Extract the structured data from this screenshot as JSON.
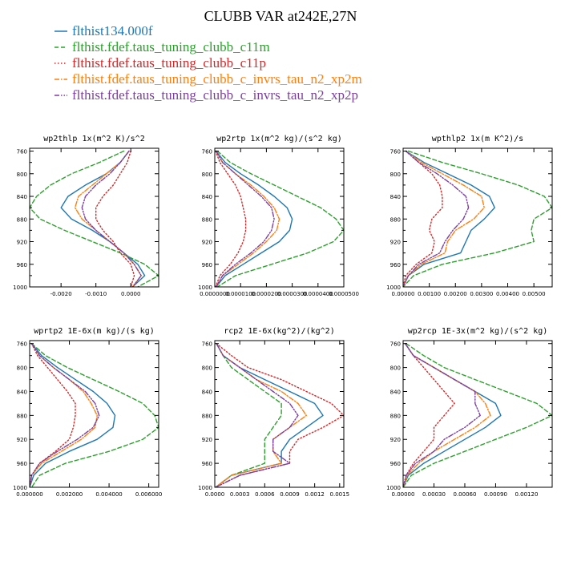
{
  "figure": {
    "title": "CLUBB VAR at242E,27N",
    "legend": [
      {
        "label": "flthist134.000f",
        "color": "#1f77b4",
        "dash": "solid"
      },
      {
        "label": "flthist.fdef.taus_tuning_clubb_c11m",
        "color": "#2ca02c",
        "dash": "dashed"
      },
      {
        "label": "flthist.fdef.taus_tuning_clubb_c11p",
        "color": "#d62728",
        "dash": "dotted"
      },
      {
        "label": "flthist.fdef.taus_tuning_clubb_c_invrs_tau_n2_xp2m",
        "color": "#ff7f0e",
        "dash": "dashdot"
      },
      {
        "label": "flthist.fdef.taus_tuning_clubb_c_invrs_tau_n2_xp2p",
        "color": "#7b3fa0",
        "dash": "dashdotdot"
      }
    ]
  },
  "chart_data": [
    {
      "type": "line",
      "title": "wp2thlp  1x(m^2 K)/s^2",
      "xlim": [
        -0.0029,
        0.0008
      ],
      "ylim": [
        1000,
        755
      ],
      "xticks": [
        -0.002,
        -0.001,
        0.0
      ],
      "xtick_labels": [
        "-0.0020",
        "-0.0010",
        "0.0000"
      ],
      "yticks": [
        760,
        800,
        840,
        880,
        920,
        960,
        1000
      ],
      "ytick_labels": [
        "760",
        "800",
        "840",
        "880",
        "920",
        "960",
        "1000"
      ],
      "y": [
        760,
        780,
        800,
        820,
        840,
        860,
        880,
        900,
        920,
        940,
        960,
        980,
        1000
      ],
      "series": [
        {
          "name": "flthist134.000f",
          "x": [
            -5e-05,
            -0.0003,
            -0.0007,
            -0.0013,
            -0.0018,
            -0.002,
            -0.0017,
            -0.0011,
            -0.0006,
            -0.0002,
            0.0002,
            0.0004,
            5e-05
          ]
        },
        {
          "name": "flthist.fdef.taus_tuning_clubb_c11m",
          "x": [
            -0.0002,
            -0.0009,
            -0.0017,
            -0.0023,
            -0.0027,
            -0.0029,
            -0.0026,
            -0.0019,
            -0.0011,
            -0.0003,
            0.0004,
            0.0008,
            0.0002
          ]
        },
        {
          "name": "flthist.fdef.taus_tuning_clubb_c11p",
          "x": [
            0.0,
            -0.0001,
            -0.0003,
            -0.0005,
            -0.0008,
            -0.001,
            -0.001,
            -0.0008,
            -0.0005,
            -0.0003,
            0.0,
            0.0001,
            0.0
          ]
        },
        {
          "name": "flthist.fdef.taus_tuning_clubb_c_invrs_tau_n2_xp2m",
          "x": [
            -5e-05,
            -0.0003,
            -0.0007,
            -0.0011,
            -0.0015,
            -0.0016,
            -0.0014,
            -0.001,
            -0.0006,
            -0.0002,
            0.0001,
            0.0003,
            5e-05
          ]
        },
        {
          "name": "flthist.fdef.taus_tuning_clubb_c_invrs_tau_n2_xp2p",
          "x": [
            -5e-05,
            -0.0003,
            -0.0006,
            -0.001,
            -0.0013,
            -0.0014,
            -0.0013,
            -0.001,
            -0.0006,
            -0.0002,
            0.0001,
            0.0003,
            5e-05
          ]
        }
      ]
    },
    {
      "type": "line",
      "title": "wp2rtp  1x(m^2 kg)/(s^2 kg)",
      "xlim": [
        0.0,
        5e-05
      ],
      "ylim": [
        1000,
        755
      ],
      "xticks": [
        0.0,
        1e-05,
        2e-05,
        3e-05,
        4e-05,
        5e-05
      ],
      "xtick_labels": [
        "0.0000000",
        "0.0000100",
        "0.0000200",
        "0.0000300",
        "0.0000400",
        "0.0000500"
      ],
      "yticks": [
        760,
        800,
        840,
        880,
        920,
        960,
        1000
      ],
      "ytick_labels": [
        "760",
        "800",
        "840",
        "880",
        "920",
        "960",
        "1000"
      ],
      "y": [
        760,
        780,
        800,
        820,
        840,
        860,
        880,
        900,
        920,
        940,
        960,
        980,
        1000
      ],
      "series": [
        {
          "name": "flthist134.000f",
          "x": [
            5e-07,
            4e-06,
            1e-05,
            1.7e-05,
            2.3e-05,
            2.8e-05,
            3e-05,
            2.9e-05,
            2.5e-05,
            1.8e-05,
            1.1e-05,
            4e-06,
            5e-07
          ]
        },
        {
          "name": "flthist.fdef.taus_tuning_clubb_c11m",
          "x": [
            1e-06,
            6e-06,
            1.4e-05,
            2.3e-05,
            3.2e-05,
            4.1e-05,
            4.7e-05,
            5e-05,
            4.6e-05,
            3.6e-05,
            2.2e-05,
            8e-06,
            1e-06
          ]
        },
        {
          "name": "flthist.fdef.taus_tuning_clubb_c11p",
          "x": [
            3e-07,
            2e-06,
            5e-06,
            8e-06,
            1e-05,
            1.1e-05,
            1.2e-05,
            1.2e-05,
            1.1e-05,
            9e-06,
            6e-06,
            2e-06,
            3e-07
          ]
        },
        {
          "name": "flthist.fdef.taus_tuning_clubb_c_invrs_tau_n2_xp2m",
          "x": [
            5e-07,
            3e-06,
            8e-06,
            1.4e-05,
            1.9e-05,
            2.3e-05,
            2.5e-05,
            2.4e-05,
            2e-05,
            1.5e-05,
            9e-06,
            3e-06,
            5e-07
          ]
        },
        {
          "name": "flthist.fdef.taus_tuning_clubb_c_invrs_tau_n2_xp2p",
          "x": [
            5e-07,
            3e-06,
            8e-06,
            1.3e-05,
            1.8e-05,
            2.2e-05,
            2.3e-05,
            2.2e-05,
            1.9e-05,
            1.4e-05,
            8e-06,
            3e-06,
            5e-07
          ]
        }
      ]
    },
    {
      "type": "line",
      "title": "wpthlp2  1x(m K^2)/s",
      "xlim": [
        0.0,
        0.0057
      ],
      "ylim": [
        1000,
        755
      ],
      "xticks": [
        0.0,
        0.001,
        0.002,
        0.003,
        0.004,
        0.005
      ],
      "xtick_labels": [
        "0.00000",
        "0.00100",
        "0.00200",
        "0.00300",
        "0.00400",
        "0.00500"
      ],
      "yticks": [
        760,
        800,
        840,
        880,
        920,
        960,
        1000
      ],
      "ytick_labels": [
        "760",
        "800",
        "840",
        "880",
        "920",
        "960",
        "1000"
      ],
      "y": [
        760,
        780,
        800,
        820,
        840,
        860,
        880,
        900,
        920,
        940,
        960,
        980,
        1000
      ],
      "series": [
        {
          "name": "flthist134.000f",
          "x": [
            0.0001,
            0.0008,
            0.0017,
            0.0026,
            0.0033,
            0.0035,
            0.0031,
            0.0026,
            0.0024,
            0.0022,
            0.0008,
            0.0002,
            0.0
          ]
        },
        {
          "name": "flthist.fdef.taus_tuning_clubb_c11m",
          "x": [
            0.0002,
            0.0015,
            0.003,
            0.0044,
            0.0054,
            0.0057,
            0.005,
            0.0049,
            0.005,
            0.0035,
            0.0015,
            0.0004,
            0.0
          ]
        },
        {
          "name": "flthist.fdef.taus_tuning_clubb_c11p",
          "x": [
            0.0001,
            0.0006,
            0.0011,
            0.0014,
            0.0015,
            0.0015,
            0.0011,
            0.001,
            0.0012,
            0.0011,
            0.0005,
            0.0001,
            0.0
          ]
        },
        {
          "name": "flthist.fdef.taus_tuning_clubb_c_invrs_tau_n2_xp2m",
          "x": [
            0.0001,
            0.0007,
            0.0015,
            0.0023,
            0.003,
            0.0031,
            0.0027,
            0.002,
            0.0017,
            0.0016,
            0.0007,
            0.0002,
            0.0
          ]
        },
        {
          "name": "flthist.fdef.taus_tuning_clubb_c_invrs_tau_n2_xp2p",
          "x": [
            0.0001,
            0.0006,
            0.0013,
            0.0019,
            0.0024,
            0.0025,
            0.0023,
            0.0019,
            0.0016,
            0.0014,
            0.0006,
            0.0002,
            0.0
          ]
        }
      ]
    },
    {
      "type": "line",
      "title": "wprtp2  1E-6x(m kg)/(s kg)",
      "xlim": [
        0.0,
        0.0065
      ],
      "ylim": [
        1000,
        755
      ],
      "xticks": [
        0.0,
        0.002,
        0.004,
        0.006
      ],
      "xtick_labels": [
        "0.000000",
        "0.002000",
        "0.004000",
        "0.006000"
      ],
      "yticks": [
        760,
        800,
        840,
        880,
        920,
        960,
        1000
      ],
      "ytick_labels": [
        "760",
        "800",
        "840",
        "880",
        "920",
        "960",
        "1000"
      ],
      "y": [
        760,
        780,
        800,
        820,
        840,
        860,
        880,
        900,
        920,
        940,
        960,
        980,
        1000
      ],
      "series": [
        {
          "name": "flthist134.000f",
          "x": [
            0.0001,
            0.0006,
            0.0014,
            0.0023,
            0.0032,
            0.0039,
            0.0043,
            0.0042,
            0.0034,
            0.002,
            0.0008,
            0.0002,
            0.0
          ]
        },
        {
          "name": "flthist.fdef.taus_tuning_clubb_c11m",
          "x": [
            0.0001,
            0.0008,
            0.0019,
            0.0032,
            0.0045,
            0.0057,
            0.0063,
            0.0065,
            0.0057,
            0.004,
            0.0018,
            0.0005,
            0.0001
          ]
        },
        {
          "name": "flthist.fdef.taus_tuning_clubb_c11p",
          "x": [
            0.0001,
            0.0004,
            0.0009,
            0.0014,
            0.0019,
            0.0023,
            0.0023,
            0.0022,
            0.002,
            0.0013,
            0.0005,
            0.0001,
            0.0
          ]
        },
        {
          "name": "flthist.fdef.taus_tuning_clubb_c_invrs_tau_n2_xp2m",
          "x": [
            0.0001,
            0.0005,
            0.0012,
            0.002,
            0.0027,
            0.0031,
            0.0034,
            0.0033,
            0.0026,
            0.0016,
            0.0006,
            0.0001,
            0.0
          ]
        },
        {
          "name": "flthist.fdef.taus_tuning_clubb_c_invrs_tau_n2_xp2p",
          "x": [
            0.0001,
            0.0005,
            0.0012,
            0.002,
            0.0028,
            0.0033,
            0.0035,
            0.0032,
            0.0024,
            0.0014,
            0.0005,
            0.0001,
            0.0
          ]
        }
      ]
    },
    {
      "type": "line",
      "title": "rcp2  1E-6x(kg^2)/(kg^2)",
      "xlim": [
        0.0,
        0.00155
      ],
      "ylim": [
        1000,
        755
      ],
      "xticks": [
        0.0,
        0.0003,
        0.0006,
        0.0009,
        0.0012,
        0.0015
      ],
      "xtick_labels": [
        "0.0000",
        "0.0003",
        "0.0006",
        "0.0009",
        "0.0012",
        "0.0015"
      ],
      "yticks": [
        760,
        800,
        840,
        880,
        920,
        960,
        1000
      ],
      "ytick_labels": [
        "760",
        "800",
        "840",
        "880",
        "920",
        "960",
        "1000"
      ],
      "y": [
        760,
        780,
        800,
        820,
        840,
        860,
        880,
        900,
        920,
        940,
        960,
        980,
        1000
      ],
      "series": [
        {
          "name": "flthist134.000f",
          "x": [
            2e-05,
            0.0001,
            0.0003,
            0.0006,
            0.0009,
            0.0012,
            0.0013,
            0.0011,
            0.0009,
            0.0008,
            0.0008,
            0.0002,
            1e-05
          ]
        },
        {
          "name": "flthist.fdef.taus_tuning_clubb_c11m",
          "x": [
            2e-05,
            0.0001,
            0.0002,
            0.0004,
            0.0006,
            0.0008,
            0.0008,
            0.0007,
            0.0006,
            0.0006,
            0.0006,
            0.0002,
            1e-05
          ]
        },
        {
          "name": "flthist.fdef.taus_tuning_clubb_c11p",
          "x": [
            2e-05,
            0.0002,
            0.0004,
            0.0008,
            0.0011,
            0.0014,
            0.00155,
            0.0013,
            0.001,
            0.0009,
            0.0009,
            0.0003,
            1e-05
          ]
        },
        {
          "name": "flthist.fdef.taus_tuning_clubb_c_invrs_tau_n2_xp2m",
          "x": [
            2e-05,
            0.0001,
            0.0003,
            0.0005,
            0.0008,
            0.001,
            0.0011,
            0.0009,
            0.0007,
            0.0007,
            0.0008,
            0.0002,
            1e-05
          ]
        },
        {
          "name": "flthist.fdef.taus_tuning_clubb_c_invrs_tau_n2_xp2p",
          "x": [
            2e-05,
            0.0001,
            0.0003,
            0.0005,
            0.0007,
            0.0009,
            0.001,
            0.0009,
            0.0007,
            0.0007,
            0.0009,
            0.0003,
            1e-05
          ]
        }
      ]
    },
    {
      "type": "line",
      "title": "wp2rcp  1E-3x(m^2 kg)/(s^2 kg)",
      "xlim": [
        0.0,
        0.00145
      ],
      "ylim": [
        1000,
        755
      ],
      "xticks": [
        0.0,
        0.0003,
        0.0006,
        0.0009,
        0.0012
      ],
      "xtick_labels": [
        "0.00000",
        "0.00030",
        "0.00060",
        "0.00090",
        "0.00120"
      ],
      "yticks": [
        760,
        800,
        840,
        880,
        920,
        960,
        1000
      ],
      "ytick_labels": [
        "760",
        "800",
        "840",
        "880",
        "920",
        "960",
        "1000"
      ],
      "y": [
        760,
        780,
        800,
        820,
        840,
        860,
        880,
        900,
        920,
        940,
        960,
        980,
        1000
      ],
      "series": [
        {
          "name": "flthist134.000f",
          "x": [
            2e-05,
            0.0001,
            0.0003,
            0.0005,
            0.0007,
            0.0009,
            0.00095,
            0.0008,
            0.0006,
            0.0004,
            0.0002,
            5e-05,
            0.0
          ]
        },
        {
          "name": "flthist.fdef.taus_tuning_clubb_c11m",
          "x": [
            3e-05,
            0.0002,
            0.0004,
            0.0007,
            0.001,
            0.0013,
            0.00145,
            0.0012,
            0.0009,
            0.0006,
            0.0003,
            8e-05,
            0.0
          ]
        },
        {
          "name": "flthist.fdef.taus_tuning_clubb_c11p",
          "x": [
            2e-05,
            0.0001,
            0.0002,
            0.0003,
            0.0004,
            0.0005,
            0.0004,
            0.0003,
            0.0003,
            0.0002,
            0.0001,
            3e-05,
            0.0
          ]
        },
        {
          "name": "flthist.fdef.taus_tuning_clubb_c_invrs_tau_n2_xp2m",
          "x": [
            2e-05,
            0.0001,
            0.0003,
            0.0005,
            0.0007,
            0.0008,
            0.00085,
            0.0007,
            0.0005,
            0.0003,
            0.00015,
            4e-05,
            0.0
          ]
        },
        {
          "name": "flthist.fdef.taus_tuning_clubb_c_invrs_tau_n2_xp2p",
          "x": [
            2e-05,
            0.0001,
            0.0003,
            0.0005,
            0.0007,
            0.0007,
            0.00075,
            0.0006,
            0.0004,
            0.0003,
            0.00012,
            3e-05,
            0.0
          ]
        }
      ]
    }
  ]
}
